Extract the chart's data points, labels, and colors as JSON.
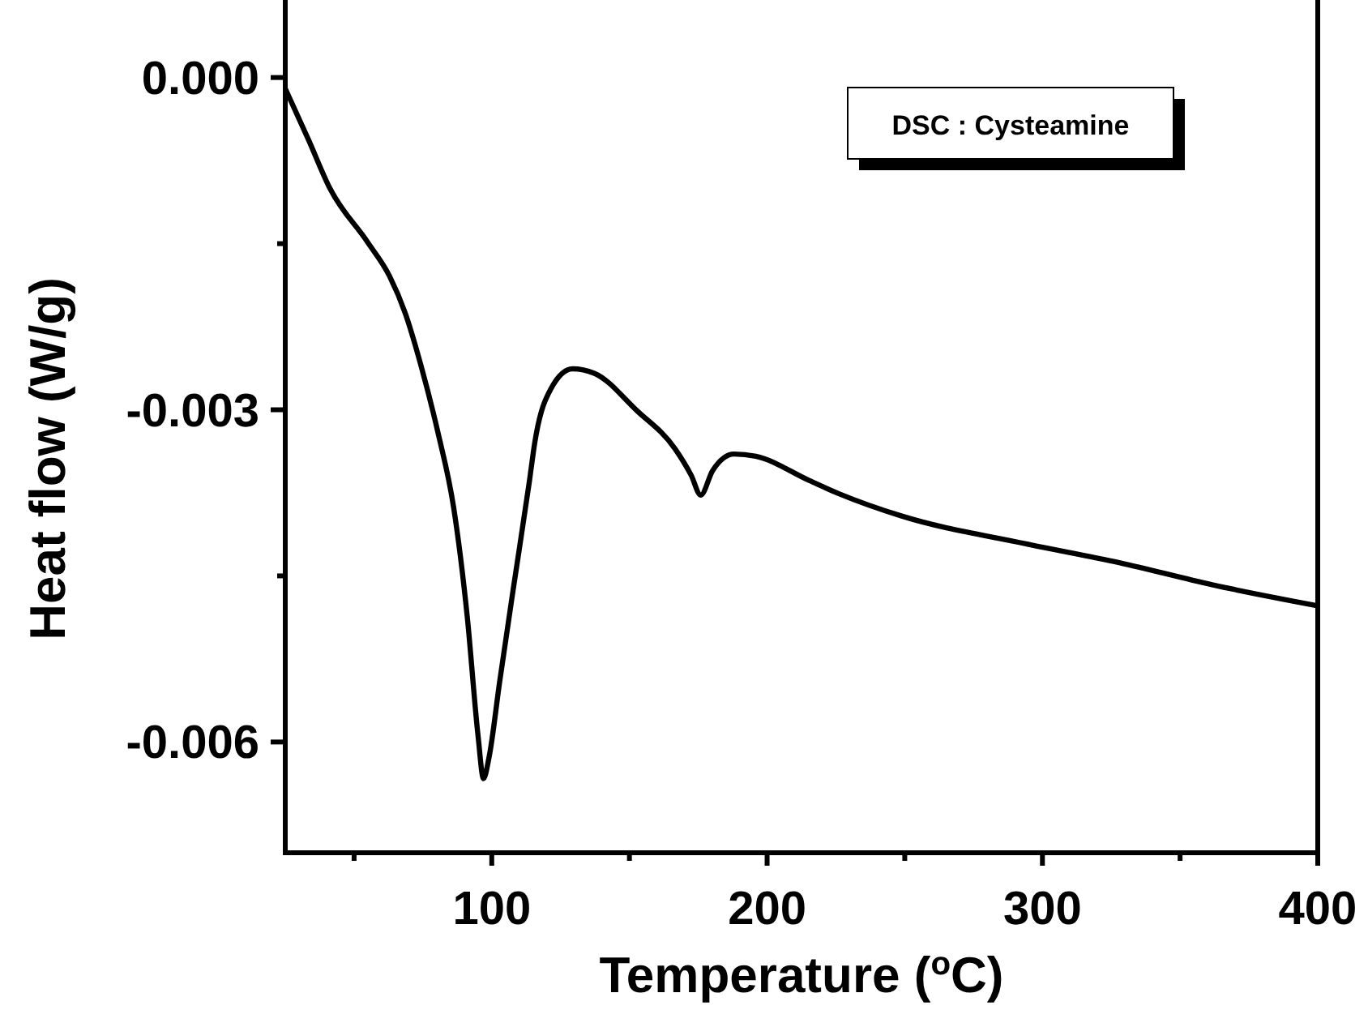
{
  "chart_data": {
    "type": "line",
    "xlabel": "Temperature ($^{o}$C)",
    "ylabel": "Heat flow (W/g)",
    "annotations": [
      "DSC : Cysteamine"
    ],
    "xlim": [
      25,
      400
    ],
    "ylim": [
      -0.007,
      0.0007
    ],
    "xticks": [
      {
        "value": 50,
        "label": null
      },
      100,
      {
        "value": 150,
        "label": null
      },
      200,
      {
        "value": 250,
        "label": null
      },
      300,
      {
        "value": 350,
        "label": null
      },
      400
    ],
    "yticks": [
      {
        "value": 0,
        "label": "0.000"
      },
      {
        "value": -0.0015,
        "label": null
      },
      {
        "value": -0.003,
        "label": "-0.003"
      },
      {
        "value": -0.0045,
        "label": null
      },
      {
        "value": -0.006,
        "label": "-0.006"
      }
    ],
    "grid": false,
    "marker": "none",
    "line_style": "solid",
    "series": [
      {
        "color": "#000000",
        "x": [
          25,
          33.4,
          41.2,
          55,
          62.8,
          68.6,
          74.5,
          80.4,
          86.2,
          91.1,
          95,
          97,
          99,
          102.9,
          107.8,
          113.7,
          115.6,
          121.5,
          129.3,
          137.2,
          152.8,
          166.5,
          172.4,
          175.9,
          180.2,
          188,
          195.9,
          215.4,
          226.3,
          248.9,
          294,
          327.9,
          361.6,
          400
        ],
        "values": [
          -0.0001,
          -0.00056,
          -0.001,
          -0.00149,
          -0.00179,
          -0.00213,
          -0.00262,
          -0.0032,
          -0.00389,
          -0.00487,
          -0.00594,
          -0.00633,
          -0.00614,
          -0.00545,
          -0.00462,
          -0.00364,
          -0.0033,
          -0.00281,
          -0.00263,
          -0.00267,
          -0.00301,
          -0.00335,
          -0.00359,
          -0.00377,
          -0.00355,
          -0.0034,
          -0.00342,
          -0.00364,
          -0.00376,
          -0.00396,
          -0.00421,
          -0.00438,
          -0.00458,
          -0.00477
        ]
      }
    ]
  }
}
